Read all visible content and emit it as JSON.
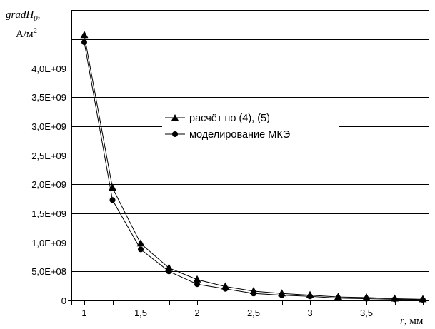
{
  "chart_data": {
    "type": "line",
    "ylabel_line1": "gradH",
    "ylabel_sub": "0",
    "ylabel_suffix": ",",
    "ylabel_line2": "А/м",
    "ylabel_sup": "2",
    "xlabel_var": "r",
    "xlabel_unit": ", мм",
    "xlim": [
      0.85,
      4.0
    ],
    "ylim": [
      0,
      4500000000.0
    ],
    "x_ticks": [
      {
        "value": 1,
        "label": "1"
      },
      {
        "value": 1.5,
        "label": "1,5"
      },
      {
        "value": 2,
        "label": "2"
      },
      {
        "value": 2.5,
        "label": "2,5"
      },
      {
        "value": 3,
        "label": "3"
      },
      {
        "value": 3.5,
        "label": "3,5"
      }
    ],
    "y_ticks": [
      {
        "value": 0,
        "label": "0"
      },
      {
        "value": 500000000.0,
        "label": "5,0E+08"
      },
      {
        "value": 1000000000.0,
        "label": "1,0E+09"
      },
      {
        "value": 1500000000.0,
        "label": "1,5E+09"
      },
      {
        "value": 2000000000.0,
        "label": "2,0E+09"
      },
      {
        "value": 2500000000.0,
        "label": "2,5E+09"
      },
      {
        "value": 3000000000.0,
        "label": "3,0E+09"
      },
      {
        "value": 3500000000.0,
        "label": "3,5E+09"
      },
      {
        "value": 4000000000.0,
        "label": "4,0E+09"
      }
    ],
    "grid": "horizontal",
    "legend_position": "center-right",
    "series": [
      {
        "name": "расчёт по (4), (5)",
        "marker": "triangle",
        "color": "#000000",
        "x": [
          1,
          1.25,
          1.5,
          1.75,
          2,
          2.25,
          2.5,
          2.75,
          3,
          3.25,
          3.5,
          3.75,
          4
        ],
        "y": [
          4570000000.0,
          1940000000.0,
          980000000.0,
          560000000.0,
          360000000.0,
          240000000.0,
          160000000.0,
          120000000.0,
          90000000.0,
          60000000.0,
          50000000.0,
          30000000.0,
          20000000.0
        ]
      },
      {
        "name": "моделирование МКЭ",
        "marker": "circle",
        "color": "#000000",
        "x": [
          1,
          1.25,
          1.5,
          1.75,
          2,
          2.25,
          2.5,
          2.75,
          3,
          3.25,
          3.5,
          3.75,
          4
        ],
        "y": [
          4450000000.0,
          1730000000.0,
          880000000.0,
          500000000.0,
          280000000.0,
          200000000.0,
          120000000.0,
          90000000.0,
          70000000.0,
          40000000.0,
          30000000.0,
          20000000.0,
          10000000.0
        ]
      }
    ]
  }
}
